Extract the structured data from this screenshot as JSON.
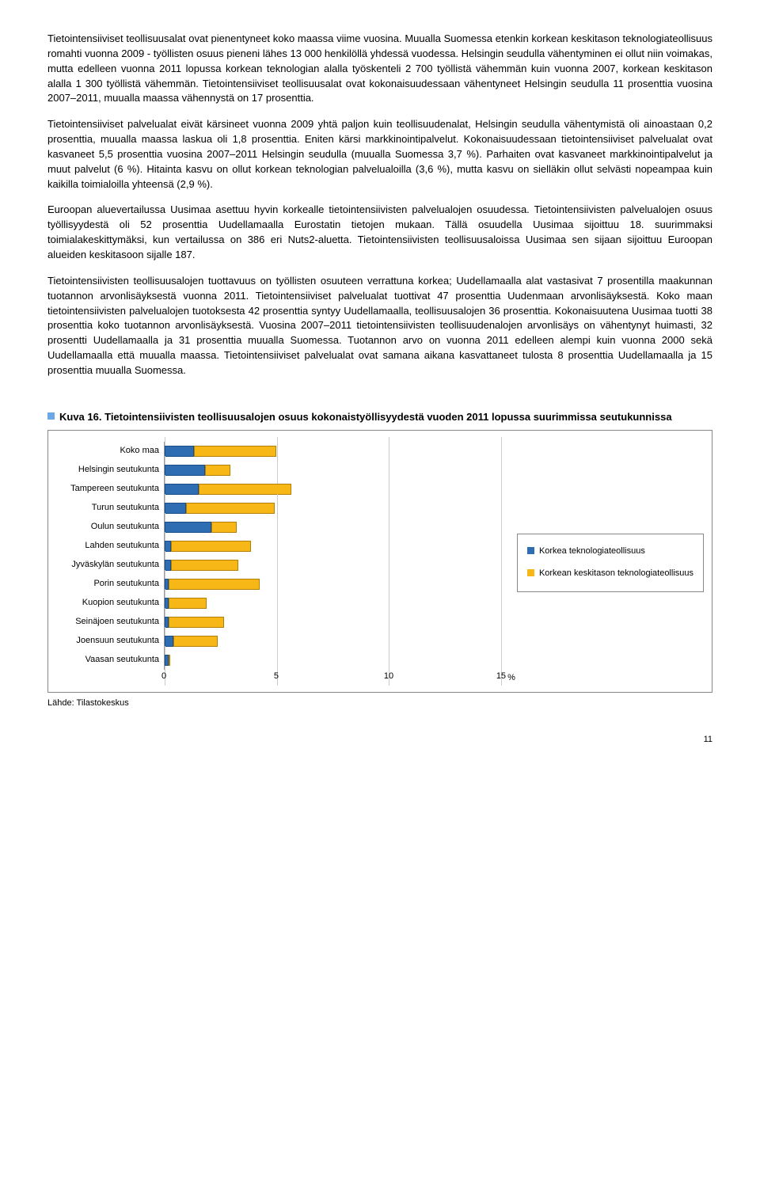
{
  "paragraphs": [
    "Tietointensiiviset teollisuusalat ovat pienentyneet koko maassa viime vuosina. Muualla Suomessa etenkin korkean keskitason teknologiateollisuus romahti vuonna 2009 - työllisten osuus pieneni lähes 13 000 henkilöllä yhdessä vuodessa. Helsingin seudulla vähentyminen ei ollut niin voimakas, mutta edelleen vuonna 2011 lopussa korkean teknologian alalla työskenteli 2 700 työllistä vähemmän kuin vuonna 2007, korkean keskitason alalla 1 300 työllistä vähemmän. Tietointensiiviset teollisuusalat ovat kokonaisuudessaan vähentyneet Helsingin seudulla 11 prosenttia vuosina 2007–2011, muualla maassa vähennystä on 17 prosenttia.",
    "Tietointensiiviset palvelualat eivät kärsineet vuonna 2009 yhtä paljon kuin teollisuudenalat, Helsingin seudulla vähentymistä oli ainoastaan 0,2 prosenttia, muualla maassa laskua oli 1,8 prosenttia. Eniten kärsi markkinointipalvelut. Kokonaisuudessaan tietointensiiviset palvelualat ovat kasvaneet 5,5 prosenttia vuosina 2007–2011 Helsingin seudulla (muualla Suomessa 3,7 %). Parhaiten ovat kasvaneet markkinointipalvelut ja muut palvelut (6 %). Hitainta kasvu on ollut korkean teknologian palvelualoilla (3,6 %), mutta kasvu on sielläkin ollut selvästi nopeampaa kuin kaikilla toimialoilla yhteensä (2,9 %).",
    "Euroopan aluevertailussa Uusimaa asettuu hyvin korkealle tietointensiivisten palvelualojen osuudessa. Tietointensiivisten palvelualojen osuus työllisyydestä oli 52 prosenttia Uudellamaalla Eurostatin tietojen mukaan. Tällä osuudella Uusimaa sijoittuu 18. suurimmaksi toimialakeskittymäksi, kun vertailussa on 386 eri Nuts2-aluetta. Tietointensiivisten teollisuusaloissa Uusimaa sen sijaan sijoittuu Euroopan alueiden keskitasoon sijalle 187.",
    "Tietointensiivisten teollisuusalojen tuottavuus on työllisten osuuteen verrattuna korkea; Uudellamaalla alat vastasivat 7 prosentilla maakunnan tuotannon arvonlisäyksestä vuonna 2011. Tietointensiiviset palvelualat tuottivat 47 prosenttia Uudenmaan arvonlisäyksestä. Koko maan tietointensiivisten palvelualojen tuotoksesta 42 prosenttia syntyy Uudellamaalla, teollisuusalojen 36 prosenttia. Kokonaisuutena Uusimaa tuotti 38 prosenttia koko tuotannon arvonlisäyksestä. Vuosina 2007–2011 tietointensiivisten teollisuudenalojen arvonlisäys on vähentynyt huimasti, 32 prosentti Uudellamaalla ja 31 prosenttia muualla Suomessa. Tuotannon arvo on vuonna 2011 edelleen alempi kuin vuonna 2000 sekä Uudellamaalla että muualla maassa. Tietointensiiviset palvelualat ovat samana aikana kasvattaneet tulosta 8 prosenttia Uudellamaalla ja 15 prosenttia muualla Suomessa."
  ],
  "figure": {
    "number_label": "Kuva 16.",
    "title": "Tietointensiivisten teollisuusalojen osuus kokonaistyöllisyydestä vuoden 2011 lopussa suurimmissa seutukunnissa",
    "categories": [
      "Koko maa",
      "Helsingin seutukunta",
      "Tampereen seutukunta",
      "Turun seutukunta",
      "Oulun seutukunta",
      "Lahden seutukunta",
      "Jyväskylän seutukunta",
      "Porin seutukunta",
      "Kuopion seutukunta",
      "Seinäjoen seutukunta",
      "Joensuun seutukunta",
      "Vaasan seutukunta"
    ],
    "series_a": [
      1.4,
      1.9,
      1.6,
      1.0,
      2.2,
      0.3,
      0.3,
      0.2,
      0.2,
      0.2,
      0.4,
      0.2
    ],
    "series_b": [
      3.9,
      1.2,
      4.4,
      4.2,
      1.2,
      3.8,
      3.2,
      4.3,
      1.8,
      2.6,
      2.1,
      0.0
    ],
    "x_ticks": [
      0,
      5,
      10,
      15
    ],
    "x_max": 15,
    "x_unit": "%",
    "colors": {
      "a": "#2f6db3",
      "b": "#f7b817",
      "grid": "#cccccc",
      "border": "#888888"
    },
    "legend": [
      {
        "label": "Korkea teknologiateollisuus",
        "color": "#2f6db3"
      },
      {
        "label": "Korkean keskitason teknologiateollisuus",
        "color": "#f7b817"
      }
    ],
    "source": "Lähde: Tilastokeskus"
  },
  "page_number": "11"
}
